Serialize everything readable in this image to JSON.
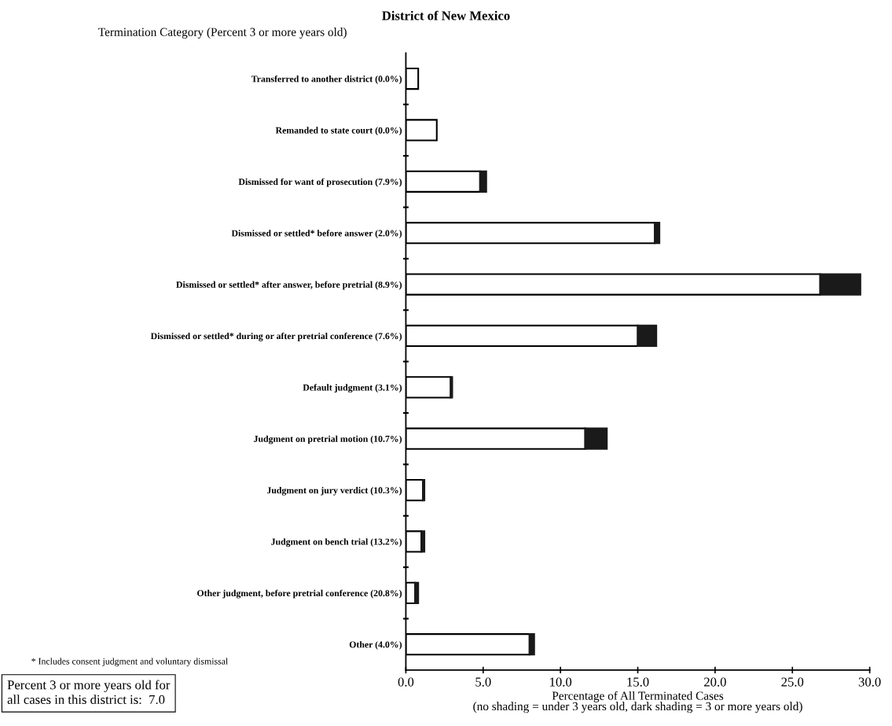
{
  "chart_data": {
    "type": "bar",
    "orientation": "horizontal",
    "stacked": true,
    "title": "District of New Mexico",
    "ylabel": "Termination Category (Percent 3 or more years old)",
    "xlabel": "Percentage of All Terminated Cases\n(no shading = under 3 years old, dark shading = 3 or more years old)",
    "categories": [
      "Transferred to another district (0.0%)",
      "Remanded to state court (0.0%)",
      "Dismissed for want of prosecution (7.9%)",
      "Dismissed or settled* before answer (2.0%)",
      "Dismissed or settled* after answer, before pretrial (8.9%)",
      "Dismissed or settled* during or after pretrial conference (7.6%)",
      "Default judgment (3.1%)",
      "Judgment on pretrial motion (10.7%)",
      "Judgment on jury verdict (10.3%)",
      "Judgment on bench trial (13.2%)",
      "Other judgment, before pretrial conference (20.8%)",
      "Other (4.0%)"
    ],
    "series": [
      {
        "color": "#ffffff",
        "values": [
          0.8,
          2.0,
          4.8,
          16.1,
          26.8,
          15.0,
          2.9,
          11.6,
          1.1,
          1.0,
          0.6,
          8.0
        ]
      },
      {
        "color": "#1a1a1a",
        "values": [
          null,
          null,
          0.4,
          0.3,
          2.6,
          1.2,
          0.1,
          1.4,
          0.1,
          0.2,
          0.2,
          0.3
        ]
      }
    ],
    "xlim": [
      0,
      30
    ],
    "xticks": [
      {
        "value": 0,
        "label": "0.0"
      },
      {
        "value": 5,
        "label": "5.0"
      },
      {
        "value": 10,
        "label": "10.0"
      },
      {
        "value": 15,
        "label": "15.0"
      },
      {
        "value": 20,
        "label": "20.0"
      },
      {
        "value": 25,
        "label": "25.0"
      },
      {
        "value": 30,
        "label": "30.0"
      }
    ],
    "grid": false,
    "legend": false,
    "annotations": [
      "* Includes consent judgment and voluntary dismissal",
      "Percent 3 or more years old for\nall cases in this district is:  7.0"
    ]
  }
}
